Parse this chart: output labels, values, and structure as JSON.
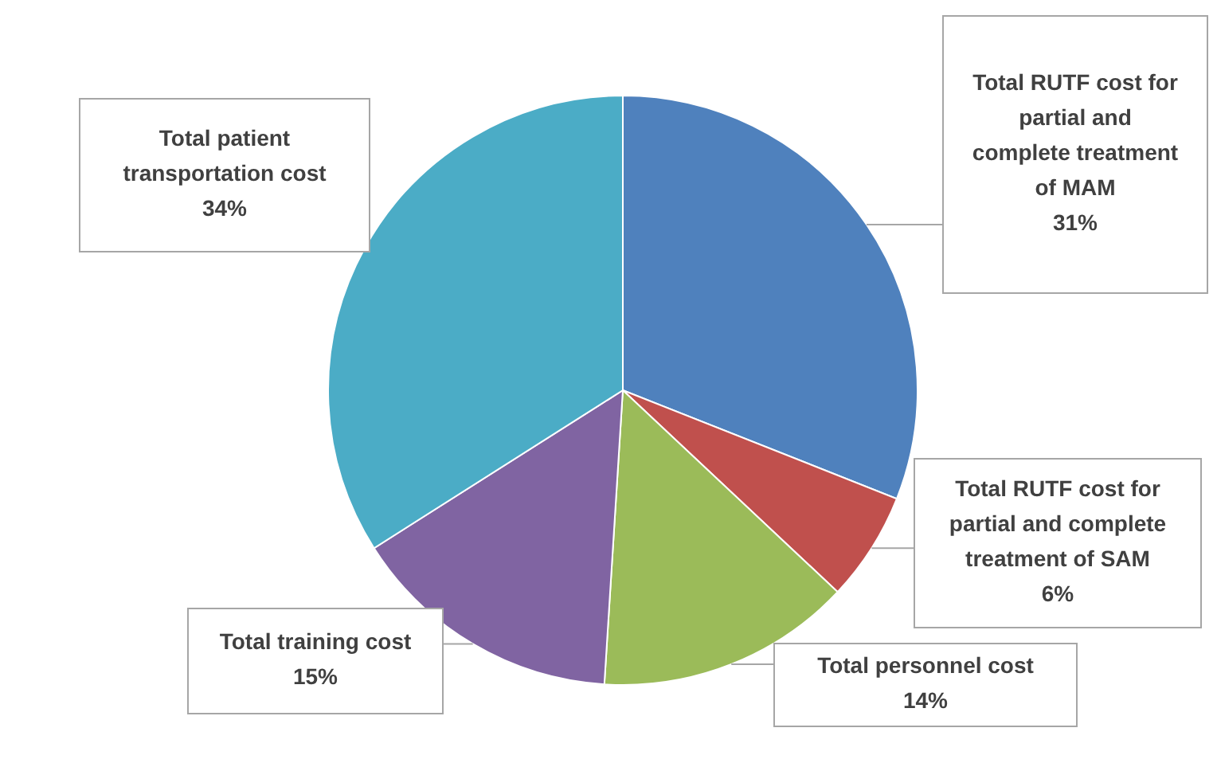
{
  "chart_data": {
    "type": "pie",
    "categories": [
      "Total RUTF cost for partial and complete treatment of MAM",
      "Total RUTF cost for partial and complete treatment of SAM",
      "Total personnel cost",
      "Total training cost",
      "Total patient transportation cost"
    ],
    "values": [
      31,
      6,
      14,
      15,
      34
    ],
    "value_labels": [
      "31%",
      "6%",
      "14%",
      "15%",
      "34%"
    ],
    "colors": [
      "#4f81bd",
      "#c0504d",
      "#9bbb59",
      "#8064a2",
      "#4bacc6"
    ]
  }
}
